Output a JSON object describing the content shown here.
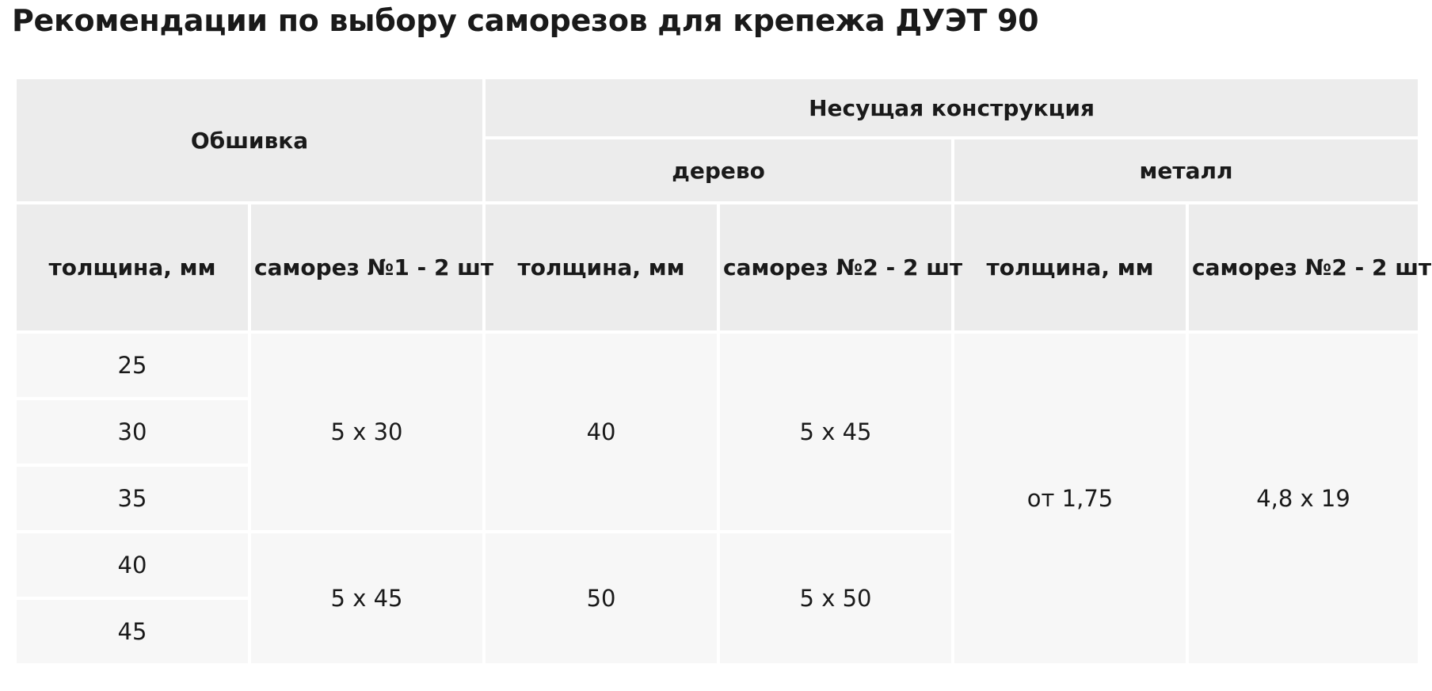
{
  "title": "Рекомендации по выбору саморезов для крепежа ДУЭТ 90",
  "table": {
    "header": {
      "sheathing": "Обшивка",
      "load_bearing": "Несущая конструкция",
      "wood": "дерево",
      "metal": "металл",
      "columns": [
        "толщина, мм",
        "саморез №1 - 2 шт",
        "толщина, мм",
        "саморез №2 - 2 шт",
        "толщина, мм",
        "саморез №2 - 2 шт"
      ]
    },
    "thickness": [
      "25",
      "30",
      "35",
      "40",
      "45"
    ],
    "screw1": [
      "5 х 30",
      "5 х 45"
    ],
    "wood_thickness": [
      "40",
      "50"
    ],
    "wood_screw": [
      "5 х 45",
      "5 х 50"
    ],
    "metal_thickness": "от 1,75",
    "metal_screw": "4,8 х 19"
  }
}
